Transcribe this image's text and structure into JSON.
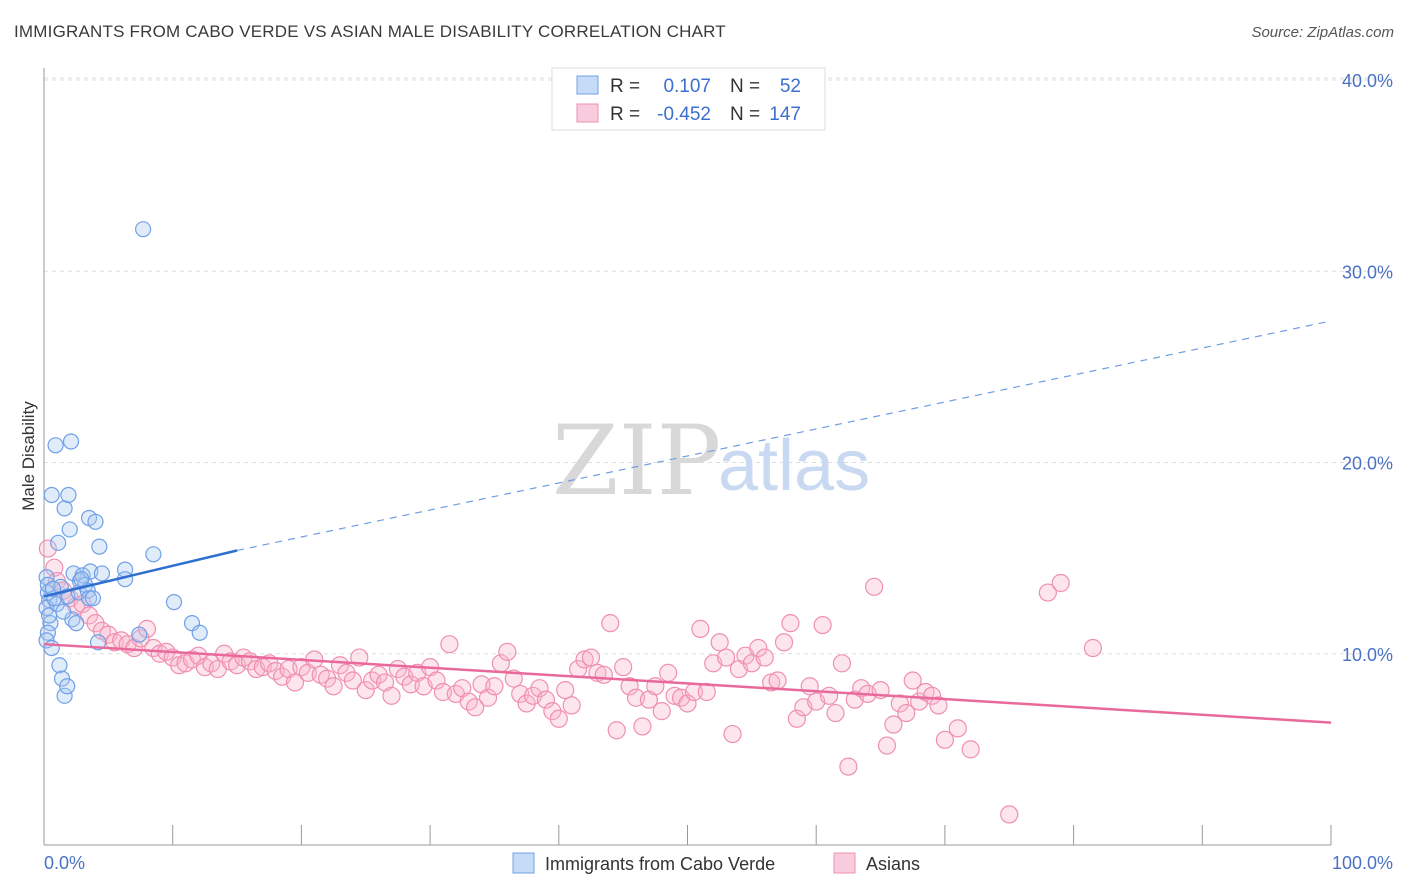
{
  "title": "IMMIGRANTS FROM CABO VERDE VS ASIAN MALE DISABILITY CORRELATION CHART",
  "source": "Source: ZipAtlas.com",
  "watermark": {
    "zip": "ZIP",
    "atlas": "atlas"
  },
  "legend": {
    "rows": [
      {
        "r_label": "R =",
        "r_value": "0.107",
        "n_label": "N =",
        "n_value": "52",
        "color": "#6fa0e8"
      },
      {
        "r_label": "R =",
        "r_value": "-0.452",
        "n_label": "N =",
        "n_value": "147",
        "color": "#f08fb0"
      }
    ]
  },
  "bottom_legend": [
    {
      "label": "Immigrants from Cabo Verde",
      "color": "#6fa0e8"
    },
    {
      "label": "Asians",
      "color": "#f08fb0"
    }
  ],
  "chart_data": {
    "type": "scatter",
    "title": "IMMIGRANTS FROM CABO VERDE VS ASIAN MALE DISABILITY CORRELATION CHART",
    "xlabel": "",
    "ylabel": "Male Disability",
    "xlim": [
      0,
      100
    ],
    "ylim": [
      0,
      40
    ],
    "x_tick_labels": [
      "0.0%",
      "100.0%"
    ],
    "y_ticks": [
      10,
      20,
      30,
      40
    ],
    "y_tick_labels": [
      "10.0%",
      "20.0%",
      "30.0%",
      "40.0%"
    ],
    "grid": true,
    "legend_position": "top-center",
    "series": [
      {
        "name": "Immigrants from Cabo Verde",
        "color": "#6fa0e8",
        "trend": {
          "x": [
            0,
            15
          ],
          "y": [
            13.0,
            15.4
          ],
          "dashed_to": [
            100,
            27.4
          ]
        },
        "points": [
          [
            0.2,
            14.0
          ],
          [
            0.3,
            13.2
          ],
          [
            0.4,
            12.8
          ],
          [
            0.2,
            12.4
          ],
          [
            0.5,
            11.6
          ],
          [
            0.3,
            11.1
          ],
          [
            0.2,
            10.7
          ],
          [
            0.6,
            10.3
          ],
          [
            0.4,
            12.0
          ],
          [
            0.3,
            13.6
          ],
          [
            0.6,
            18.3
          ],
          [
            0.9,
            20.9
          ],
          [
            1.1,
            15.8
          ],
          [
            1.3,
            13.5
          ],
          [
            1.0,
            12.6
          ],
          [
            1.2,
            9.4
          ],
          [
            1.4,
            8.7
          ],
          [
            1.6,
            7.8
          ],
          [
            1.8,
            8.3
          ],
          [
            1.6,
            17.6
          ],
          [
            1.9,
            18.3
          ],
          [
            2.1,
            21.1
          ],
          [
            2.0,
            16.5
          ],
          [
            1.8,
            13.0
          ],
          [
            2.2,
            11.8
          ],
          [
            2.3,
            14.2
          ],
          [
            2.5,
            11.6
          ],
          [
            2.7,
            13.2
          ],
          [
            2.8,
            13.8
          ],
          [
            3.0,
            14.1
          ],
          [
            3.2,
            13.6
          ],
          [
            3.4,
            13.3
          ],
          [
            3.5,
            17.1
          ],
          [
            3.5,
            12.9
          ],
          [
            3.8,
            12.9
          ],
          [
            3.6,
            14.3
          ],
          [
            4.0,
            16.9
          ],
          [
            4.3,
            15.6
          ],
          [
            4.2,
            10.6
          ],
          [
            4.5,
            14.2
          ],
          [
            6.3,
            14.4
          ],
          [
            6.3,
            13.9
          ],
          [
            7.4,
            11.0
          ],
          [
            7.7,
            32.2
          ],
          [
            8.5,
            15.2
          ],
          [
            10.1,
            12.7
          ],
          [
            11.5,
            11.6
          ],
          [
            12.1,
            11.1
          ],
          [
            0.8,
            12.9
          ],
          [
            1.5,
            12.2
          ],
          [
            2.9,
            13.9
          ],
          [
            0.7,
            13.4
          ]
        ]
      },
      {
        "name": "Asians",
        "color": "#f08fb0",
        "trend": {
          "x": [
            0,
            100
          ],
          "y": [
            10.5,
            6.4
          ]
        },
        "points": [
          [
            0.3,
            15.5
          ],
          [
            0.8,
            14.5
          ],
          [
            1.0,
            13.8
          ],
          [
            1.5,
            13.3
          ],
          [
            2.0,
            12.9
          ],
          [
            2.5,
            12.5
          ],
          [
            3.0,
            12.6
          ],
          [
            3.5,
            12.0
          ],
          [
            4.0,
            11.6
          ],
          [
            4.5,
            11.2
          ],
          [
            5.0,
            11.0
          ],
          [
            5.5,
            10.6
          ],
          [
            6.0,
            10.7
          ],
          [
            6.5,
            10.5
          ],
          [
            7.0,
            10.3
          ],
          [
            7.5,
            10.8
          ],
          [
            8.0,
            11.3
          ],
          [
            8.5,
            10.3
          ],
          [
            9.0,
            10.0
          ],
          [
            9.5,
            10.1
          ],
          [
            10.0,
            9.8
          ],
          [
            10.5,
            9.4
          ],
          [
            11.0,
            9.5
          ],
          [
            11.5,
            9.7
          ],
          [
            12.0,
            9.9
          ],
          [
            12.5,
            9.3
          ],
          [
            13.0,
            9.5
          ],
          [
            13.5,
            9.2
          ],
          [
            14.0,
            10.0
          ],
          [
            14.5,
            9.6
          ],
          [
            15.0,
            9.4
          ],
          [
            15.5,
            9.8
          ],
          [
            16.0,
            9.6
          ],
          [
            16.5,
            9.2
          ],
          [
            17.0,
            9.3
          ],
          [
            17.5,
            9.5
          ],
          [
            18.0,
            9.1
          ],
          [
            18.5,
            8.8
          ],
          [
            19.0,
            9.2
          ],
          [
            19.5,
            8.5
          ],
          [
            20.0,
            9.3
          ],
          [
            20.5,
            9.0
          ],
          [
            21.0,
            9.7
          ],
          [
            21.5,
            8.9
          ],
          [
            22.0,
            8.7
          ],
          [
            22.5,
            8.3
          ],
          [
            23.0,
            9.4
          ],
          [
            23.5,
            9.0
          ],
          [
            24.0,
            8.6
          ],
          [
            24.5,
            9.8
          ],
          [
            25.0,
            8.1
          ],
          [
            25.5,
            8.6
          ],
          [
            26.0,
            8.9
          ],
          [
            26.5,
            8.5
          ],
          [
            27.0,
            7.8
          ],
          [
            27.5,
            9.2
          ],
          [
            28.0,
            8.8
          ],
          [
            28.5,
            8.4
          ],
          [
            29.0,
            9.0
          ],
          [
            29.5,
            8.3
          ],
          [
            30.0,
            9.3
          ],
          [
            30.5,
            8.6
          ],
          [
            31.0,
            8.0
          ],
          [
            31.5,
            10.5
          ],
          [
            32.0,
            7.9
          ],
          [
            32.5,
            8.2
          ],
          [
            33.0,
            7.5
          ],
          [
            33.5,
            7.2
          ],
          [
            34.0,
            8.4
          ],
          [
            34.5,
            7.7
          ],
          [
            35.0,
            8.3
          ],
          [
            35.5,
            9.5
          ],
          [
            36.0,
            10.1
          ],
          [
            36.5,
            8.7
          ],
          [
            37.0,
            7.9
          ],
          [
            37.5,
            7.4
          ],
          [
            38.0,
            7.8
          ],
          [
            38.5,
            8.2
          ],
          [
            39.0,
            7.6
          ],
          [
            39.5,
            7.0
          ],
          [
            40.0,
            6.6
          ],
          [
            40.5,
            8.1
          ],
          [
            41.0,
            7.3
          ],
          [
            41.5,
            9.2
          ],
          [
            42.0,
            9.7
          ],
          [
            42.5,
            9.8
          ],
          [
            43.0,
            9.0
          ],
          [
            43.5,
            8.9
          ],
          [
            44.0,
            11.6
          ],
          [
            44.5,
            6.0
          ],
          [
            45.0,
            9.3
          ],
          [
            45.5,
            8.3
          ],
          [
            46.0,
            7.7
          ],
          [
            46.5,
            6.2
          ],
          [
            47.0,
            7.6
          ],
          [
            47.5,
            8.3
          ],
          [
            48.0,
            7.0
          ],
          [
            48.5,
            9.0
          ],
          [
            49.0,
            7.8
          ],
          [
            49.5,
            7.7
          ],
          [
            50.0,
            7.4
          ],
          [
            50.5,
            8.0
          ],
          [
            51.0,
            11.3
          ],
          [
            51.5,
            8.0
          ],
          [
            52.0,
            9.5
          ],
          [
            52.5,
            10.6
          ],
          [
            53.0,
            9.8
          ],
          [
            53.5,
            5.8
          ],
          [
            54.0,
            9.2
          ],
          [
            54.5,
            9.9
          ],
          [
            55.0,
            9.5
          ],
          [
            55.5,
            10.3
          ],
          [
            56.0,
            9.8
          ],
          [
            56.5,
            8.5
          ],
          [
            57.0,
            8.6
          ],
          [
            57.5,
            10.6
          ],
          [
            58.0,
            11.6
          ],
          [
            58.5,
            6.6
          ],
          [
            59.0,
            7.2
          ],
          [
            59.5,
            8.3
          ],
          [
            60.0,
            7.5
          ],
          [
            60.5,
            11.5
          ],
          [
            61.0,
            7.8
          ],
          [
            61.5,
            6.9
          ],
          [
            62.0,
            9.5
          ],
          [
            62.5,
            4.1
          ],
          [
            63.0,
            7.6
          ],
          [
            63.5,
            8.2
          ],
          [
            64.0,
            7.9
          ],
          [
            64.5,
            13.5
          ],
          [
            65.0,
            8.1
          ],
          [
            65.5,
            5.2
          ],
          [
            66.0,
            6.3
          ],
          [
            66.5,
            7.4
          ],
          [
            67.0,
            6.9
          ],
          [
            67.5,
            8.6
          ],
          [
            68.0,
            7.5
          ],
          [
            68.5,
            8.0
          ],
          [
            69.0,
            7.8
          ],
          [
            70.0,
            5.5
          ],
          [
            72.0,
            5.0
          ],
          [
            75.0,
            1.6
          ],
          [
            78.0,
            13.2
          ],
          [
            79.0,
            13.7
          ],
          [
            81.5,
            10.3
          ],
          [
            69.5,
            7.3
          ],
          [
            71.0,
            6.1
          ]
        ]
      }
    ]
  }
}
